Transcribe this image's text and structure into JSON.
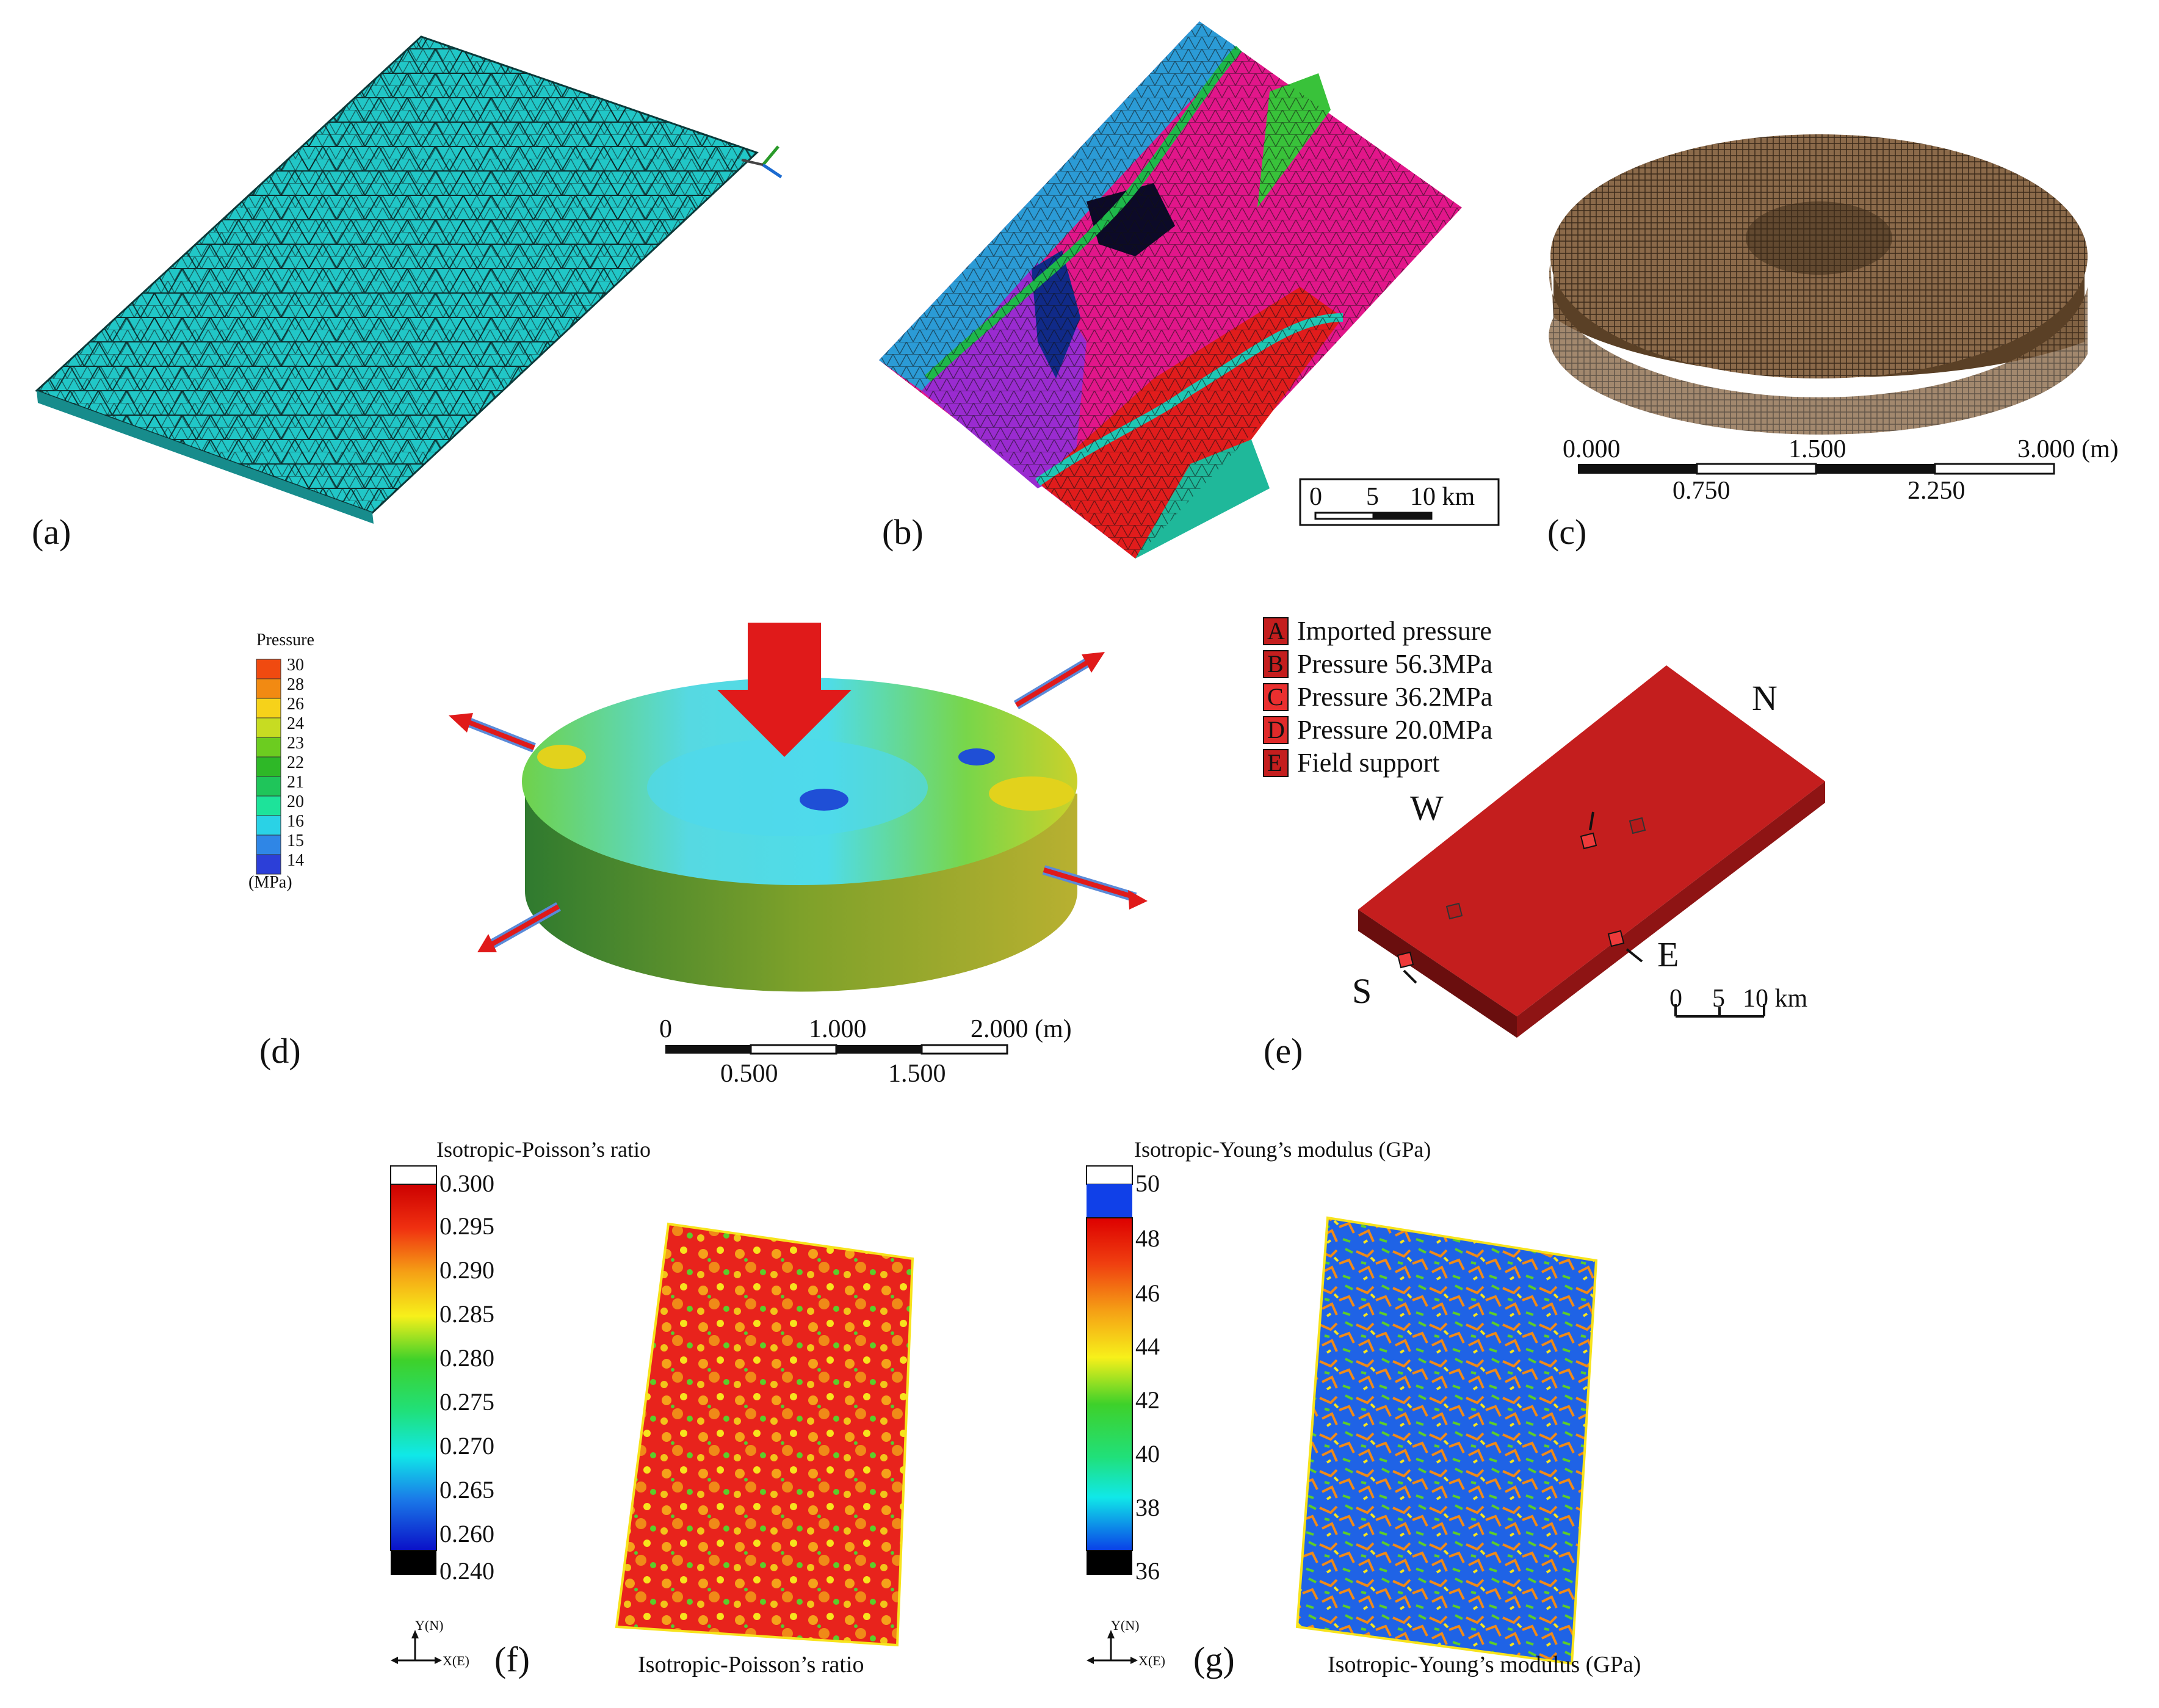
{
  "panels": {
    "a": {
      "label": "(a)"
    },
    "b": {
      "label": "(b)",
      "scalebar": [
        "0",
        "5",
        "10 km"
      ]
    },
    "c": {
      "label": "(c)",
      "scalebar_top": [
        "0.000",
        "1.500",
        "3.000 (m)"
      ],
      "scalebar_bottom": [
        "0.750",
        "2.250"
      ]
    },
    "d": {
      "label": "(d)",
      "legend_title": "Pressure",
      "legend_unit": "(MPa)",
      "legend_ticks": [
        "30",
        "28",
        "26",
        "24",
        "23",
        "22",
        "21",
        "20",
        "16",
        "15",
        "14"
      ],
      "legend_colors": [
        "#f04a10",
        "#f28a12",
        "#f6d21a",
        "#c7dc22",
        "#6ccc20",
        "#2eb827",
        "#1fc55a",
        "#1de39a",
        "#2ad2e6",
        "#2f86e6",
        "#2c3fd8"
      ],
      "scalebar_top": [
        "0",
        "1.000",
        "2.000 (m)"
      ],
      "scalebar_bottom": [
        "0.500",
        "1.500"
      ]
    },
    "e": {
      "label": "(e)",
      "legend": [
        {
          "key": "A",
          "text": "Imported pressure"
        },
        {
          "key": "B",
          "text": "Pressure 56.3MPa"
        },
        {
          "key": "C",
          "text": "Pressure 36.2MPa"
        },
        {
          "key": "D",
          "text": "Pressure 20.0MPa"
        },
        {
          "key": "E",
          "text": "Field support"
        }
      ],
      "directions": {
        "n": "N",
        "w": "W",
        "s": "S",
        "e": "E"
      },
      "scalebar": [
        "0",
        "5",
        "10 km"
      ]
    },
    "f": {
      "label": "(f)",
      "colorbar_title": "Isotropic-Poisson’s ratio",
      "ticks": [
        "0.300",
        "0.295",
        "0.290",
        "0.285",
        "0.280",
        "0.275",
        "0.270",
        "0.265",
        "0.260",
        "0.240"
      ],
      "caption": "Isotropic-Poisson’s ratio",
      "axis_y": "Y(N)",
      "axis_x": "X(E)"
    },
    "g": {
      "label": "(g)",
      "colorbar_title": "Isotropic-Young’s modulus (GPa)",
      "ticks": [
        "50",
        "48",
        "46",
        "44",
        "42",
        "40",
        "38",
        "36"
      ],
      "caption": "Isotropic-Young’s modulus (GPa)",
      "axis_y": "Y(N)",
      "axis_x": "X(E)"
    }
  },
  "colors": {
    "mesh_cyan": "#21c7c7",
    "block_red": "#c41e1e",
    "disc_brown": "#8b6a4a",
    "magenta": "#e2168a",
    "blue_band": "#2b9bd6",
    "purple": "#9a2bd0",
    "teal": "#1fb89a"
  }
}
